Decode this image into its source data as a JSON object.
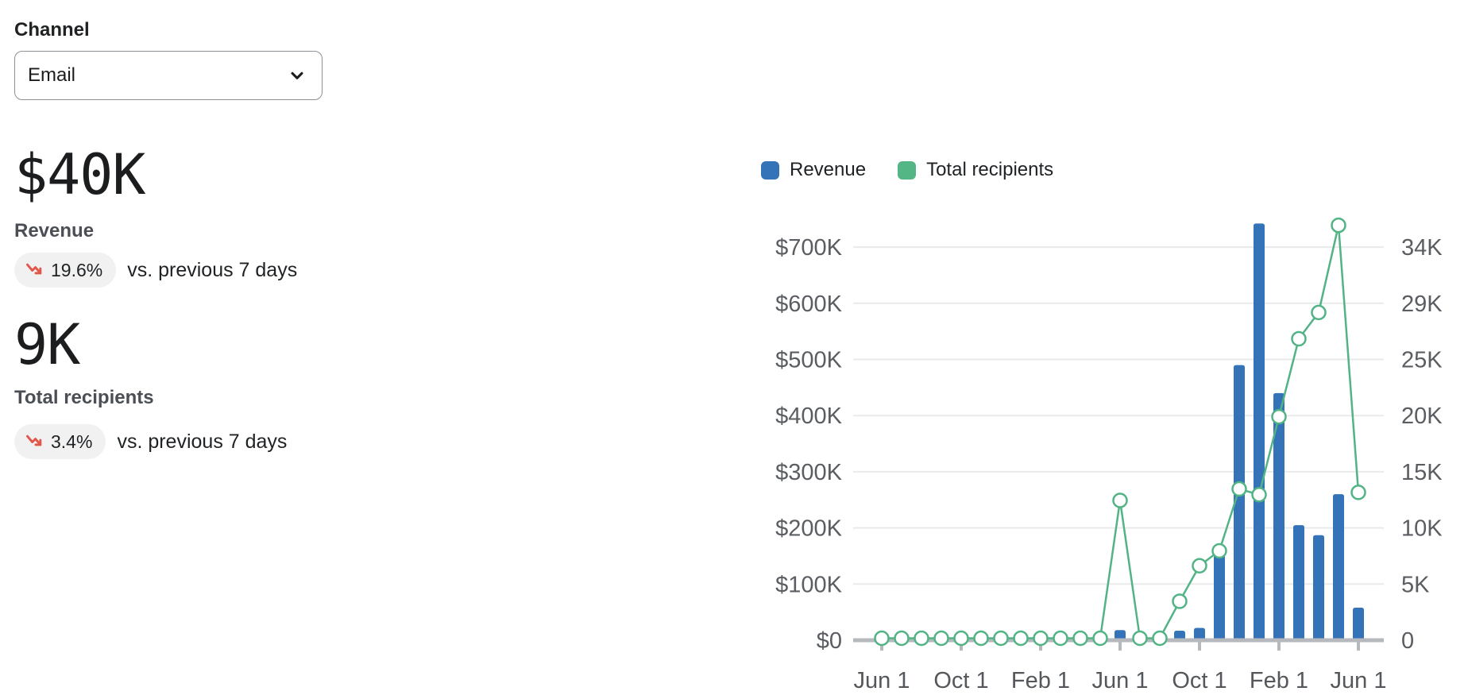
{
  "filters": {
    "channel_label": "Channel",
    "channel_value": "Email"
  },
  "metrics": [
    {
      "value": "$40K",
      "label": "Revenue",
      "change": "19.6%",
      "direction": "down",
      "comparison": "vs. previous 7 days"
    },
    {
      "value": "9K",
      "label": "Total recipients",
      "change": "3.4%",
      "direction": "down",
      "comparison": "vs. previous 7 days"
    }
  ],
  "legend": [
    {
      "label": "Revenue",
      "color": "#3573B8"
    },
    {
      "label": "Total recipients",
      "color": "#55B685"
    }
  ],
  "colors": {
    "bar_blue": "#3573B8",
    "line_green": "#52B385",
    "legend_green": "#55B685",
    "trend_red": "#E0584C",
    "badge_bg": "#F1F1F1",
    "gridline": "#E9EAEA",
    "axis_line": "#B5B9BD",
    "axis_text": "#5A5D61",
    "x_axis_text": "#54575B"
  },
  "chart_data": {
    "type": "combo",
    "n_points": 25,
    "x_start_month": "Jun 1",
    "x_ticks": [
      {
        "index": 0,
        "label": "Jun 1"
      },
      {
        "index": 4,
        "label": "Oct 1"
      },
      {
        "index": 8,
        "label": "Feb 1"
      },
      {
        "index": 12,
        "label": "Jun 1"
      },
      {
        "index": 16,
        "label": "Oct 1"
      },
      {
        "index": 20,
        "label": "Feb 1"
      },
      {
        "index": 24,
        "label": "Jun 1"
      }
    ],
    "y_left": {
      "ticks": [
        "$0",
        "$100K",
        "$200K",
        "$300K",
        "$400K",
        "$500K",
        "$600K",
        "$700K"
      ],
      "per_gridline": 100,
      "unit": "$K",
      "ylim": [
        0,
        742
      ]
    },
    "y_right": {
      "ticks": [
        "0",
        "5K",
        "10K",
        "15K",
        "20K",
        "25K",
        "29K",
        "34K"
      ],
      "per_gridline": 4.9,
      "unit": "K",
      "ylim": [
        0,
        36.2
      ]
    },
    "series": [
      {
        "name": "Revenue",
        "type": "bar",
        "axis": "left",
        "unit": "$K",
        "values": [
          0,
          0,
          0,
          0,
          0,
          0,
          0,
          0,
          0,
          0,
          0,
          0,
          18,
          0,
          0,
          17,
          22,
          152,
          490,
          742,
          440,
          205,
          187,
          260,
          58
        ]
      },
      {
        "name": "Total recipients",
        "type": "line",
        "axis": "right",
        "unit": "K",
        "values": [
          0,
          0,
          0,
          0,
          0,
          0,
          0,
          0,
          0,
          0,
          0,
          0,
          12.2,
          0,
          0,
          3.4,
          6.5,
          7.8,
          13.2,
          12.7,
          19.5,
          26.3,
          28.6,
          36.2,
          12.9
        ]
      }
    ],
    "grid": true,
    "legend_position": "top"
  }
}
